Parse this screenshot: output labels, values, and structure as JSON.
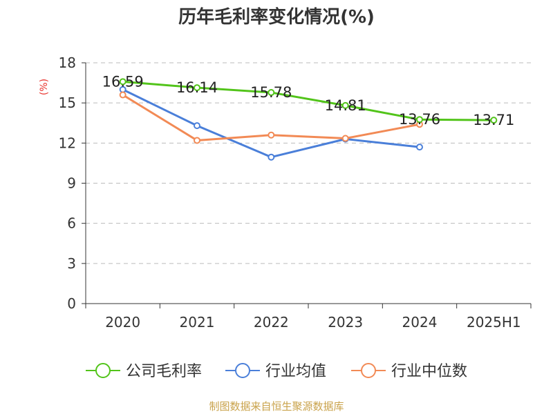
{
  "title": "历年毛利率变化情况(%)",
  "source_note": "制图数据来自恒生聚源数据库",
  "colors": {
    "company": "#52c41a",
    "industry_avg": "#4a7fd9",
    "industry_median": "#f28a55",
    "grid": "#bbbbbb",
    "axis": "#333333",
    "unit": "#e8332d",
    "source": "#c9a24a"
  },
  "chart_data": {
    "type": "line",
    "title": "历年毛利率变化情况(%)",
    "ylabel": "(%)",
    "xlabel": "",
    "ylim": [
      0,
      18
    ],
    "yticks": [
      0,
      3,
      6,
      9,
      12,
      15,
      18
    ],
    "grid": true,
    "legend_position": "bottom",
    "categories": [
      "2020",
      "2021",
      "2022",
      "2023",
      "2024",
      "2025H1"
    ],
    "series": [
      {
        "name": "公司毛利率",
        "key": "company",
        "values": [
          16.59,
          16.14,
          15.78,
          14.81,
          13.76,
          13.71
        ],
        "data_labels": [
          "16.59",
          "16.14",
          "15.78",
          "14.81",
          "13.76",
          "13.71"
        ]
      },
      {
        "name": "行业均值",
        "key": "industry_avg",
        "values": [
          16.0,
          13.3,
          10.95,
          12.3,
          11.7,
          null
        ]
      },
      {
        "name": "行业中位数",
        "key": "industry_median",
        "values": [
          15.6,
          12.2,
          12.6,
          12.35,
          13.4,
          null
        ]
      }
    ]
  }
}
